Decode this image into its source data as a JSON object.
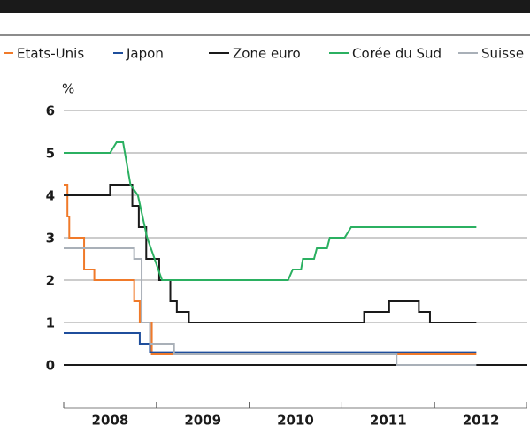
{
  "chart_data": {
    "type": "line",
    "y_unit": "%",
    "xlim": [
      2008,
      2013
    ],
    "ylim": [
      0,
      6.5
    ],
    "yticks": [
      0,
      1,
      2,
      3,
      4,
      5,
      6
    ],
    "grid": true,
    "xticks": [
      {
        "value": 2008.5,
        "label": "2008"
      },
      {
        "value": 2009.5,
        "label": "2009"
      },
      {
        "value": 2010.5,
        "label": "2010"
      },
      {
        "value": 2011.5,
        "label": "2011"
      },
      {
        "value": 2012.5,
        "label": "2012"
      }
    ],
    "xtick_marks": [
      2008,
      2009,
      2010,
      2011,
      2012,
      2013
    ],
    "series": [
      {
        "name": "Etats-Unis",
        "color": "#f07a2a",
        "step": true,
        "x": [
          2008,
          2008.04,
          2008.06,
          2008.22,
          2008.33,
          2008.76,
          2008.82,
          2008.95,
          2012.45
        ],
        "values": [
          4.25,
          3.5,
          3.0,
          2.25,
          2.0,
          1.5,
          1.0,
          0.25,
          0.25
        ]
      },
      {
        "name": "Japon",
        "color": "#1f4e9c",
        "step": true,
        "x": [
          2008,
          2008.82,
          2008.93,
          2012.45
        ],
        "values": [
          0.75,
          0.5,
          0.3,
          0.3
        ]
      },
      {
        "name": "Zone euro",
        "color": "#1a1a1a",
        "step": true,
        "x": [
          2008,
          2008.5,
          2008.74,
          2008.81,
          2008.89,
          2009.03,
          2009.15,
          2009.22,
          2009.35,
          2011.24,
          2011.51,
          2011.83,
          2011.95,
          2012.45
        ],
        "values": [
          4.0,
          4.25,
          3.75,
          3.25,
          2.5,
          2.0,
          1.5,
          1.25,
          1.0,
          1.25,
          1.5,
          1.25,
          1.0,
          1.0
        ]
      },
      {
        "name": "Corée du Sud",
        "color": "#2bb061",
        "step": false,
        "x": [
          2008,
          2008.5,
          2008.57,
          2008.64,
          2008.72,
          2008.8,
          2008.9,
          2009.06,
          2010.42,
          2010.47,
          2010.56,
          2010.58,
          2010.7,
          2010.73,
          2010.84,
          2010.87,
          2011.03,
          2011.1,
          2012.45
        ],
        "values": [
          5.0,
          5.0,
          5.25,
          5.25,
          4.25,
          4.0,
          3.0,
          2.0,
          2.0,
          2.25,
          2.25,
          2.5,
          2.5,
          2.75,
          2.75,
          3.0,
          3.0,
          3.25,
          3.25
        ]
      },
      {
        "name": "Suisse",
        "color": "#a9b0b8",
        "step": true,
        "x": [
          2008,
          2008.76,
          2008.84,
          2008.93,
          2009.19,
          2011.59,
          2012.45
        ],
        "values": [
          2.75,
          2.5,
          1.0,
          0.5,
          0.25,
          0.0,
          0.0
        ]
      }
    ]
  }
}
